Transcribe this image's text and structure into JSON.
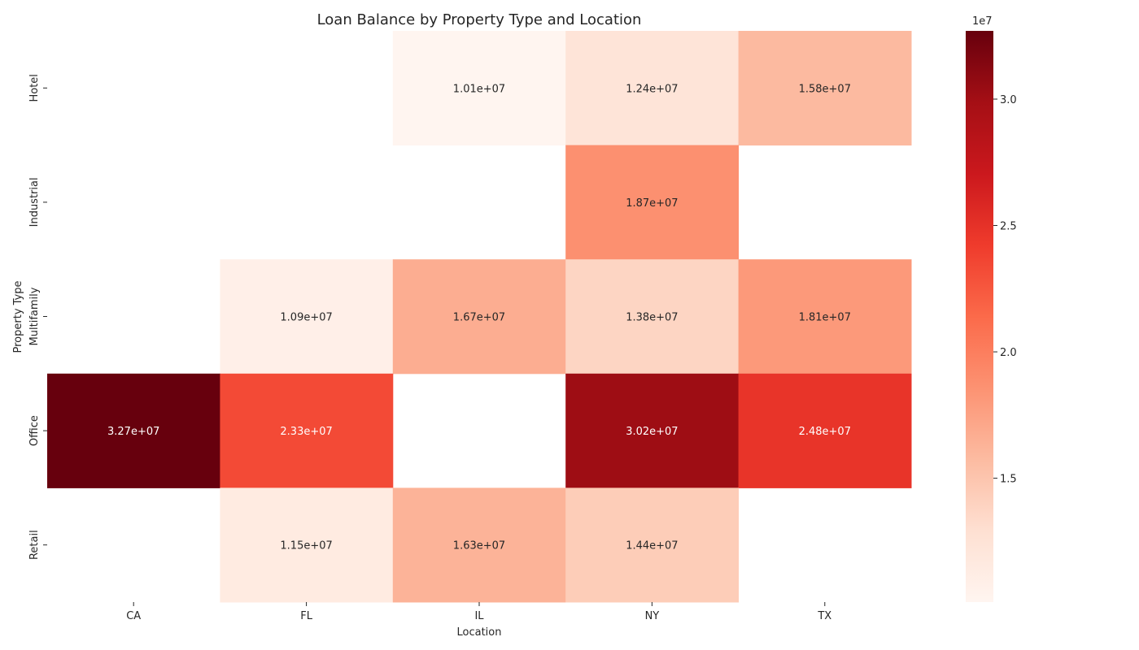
{
  "chart_data": {
    "type": "heatmap",
    "title": "Loan Balance by Property Type and Location",
    "xlabel": "Location",
    "ylabel": "Property Type",
    "x_categories": [
      "CA",
      "FL",
      "IL",
      "NY",
      "TX"
    ],
    "y_categories": [
      "Hotel",
      "Industrial",
      "Multifamily",
      "Office",
      "Retail"
    ],
    "values": [
      [
        null,
        null,
        10100000,
        12400000,
        15800000
      ],
      [
        null,
        null,
        null,
        18700000,
        null
      ],
      [
        null,
        10900000,
        16700000,
        13800000,
        18100000
      ],
      [
        32700000,
        23300000,
        null,
        30200000,
        24800000
      ],
      [
        null,
        11500000,
        16300000,
        14400000,
        null
      ]
    ],
    "cell_labels": [
      [
        null,
        null,
        "1.01e+07",
        "1.24e+07",
        "1.58e+07"
      ],
      [
        null,
        null,
        null,
        "1.87e+07",
        null
      ],
      [
        null,
        "1.09e+07",
        "1.67e+07",
        "1.38e+07",
        "1.81e+07"
      ],
      [
        "3.27e+07",
        "2.33e+07",
        null,
        "3.02e+07",
        "2.48e+07"
      ],
      [
        null,
        "1.15e+07",
        "1.63e+07",
        "1.44e+07",
        null
      ]
    ],
    "colormap": "Reds",
    "colorbar": {
      "range": [
        10100000,
        32700000
      ],
      "ticks": [
        15000000,
        20000000,
        25000000,
        30000000
      ],
      "tick_labels": [
        "1.5",
        "2.0",
        "2.5",
        "3.0"
      ],
      "multiplier_label": "1e7"
    },
    "grid": false,
    "legend": "colorbar-right"
  }
}
